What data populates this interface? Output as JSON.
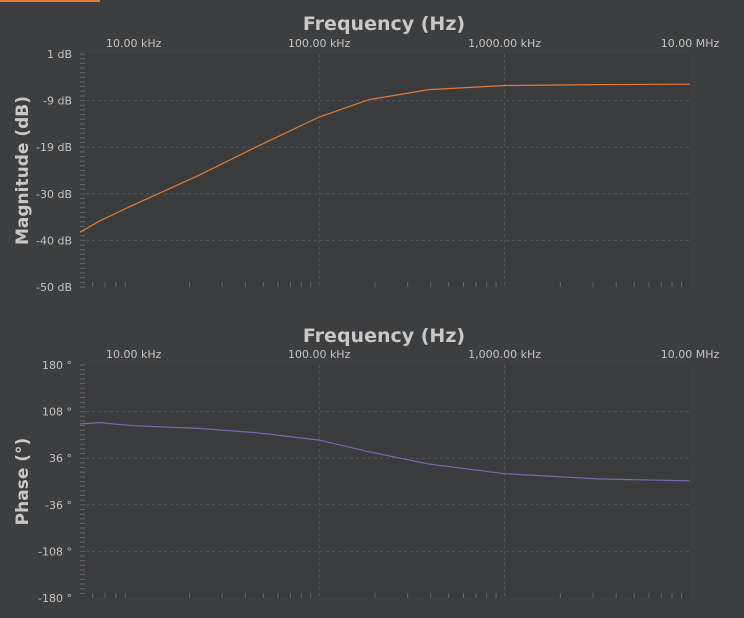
{
  "chart_data": [
    {
      "type": "line",
      "title": "Frequency (Hz)",
      "xlabel": "Frequency (Hz)",
      "ylabel": "Magnitude (dB)",
      "xscale": "log",
      "xlim": [
        5130,
        10000000
      ],
      "ylim": [
        -50,
        1
      ],
      "xticks": [
        {
          "value": 10000,
          "label": "10.00 kHz"
        },
        {
          "value": 100000,
          "label": "100.00 kHz"
        },
        {
          "value": 1000000,
          "label": "1,000.00 kHz"
        },
        {
          "value": 10000000,
          "label": "10.00 MHz"
        }
      ],
      "yticks": [
        {
          "value": 1,
          "label": "1 dB"
        },
        {
          "value": -9.2,
          "label": "-9 dB"
        },
        {
          "value": -19.4,
          "label": "-19 dB"
        },
        {
          "value": -29.6,
          "label": "-30 dB"
        },
        {
          "value": -39.8,
          "label": "-40 dB"
        },
        {
          "value": -50,
          "label": "-50 dB"
        }
      ],
      "grid": true,
      "color": "#e07b39",
      "x": [
        5130,
        6570,
        10000,
        22600,
        47600,
        100000,
        185000,
        390000,
        1000000,
        3200000,
        10000000
      ],
      "y": [
        -38,
        -35.5,
        -32,
        -25.5,
        -19,
        -12.8,
        -9,
        -6.8,
        -5.9,
        -5.7,
        -5.6
      ]
    },
    {
      "type": "line",
      "title": "Frequency (Hz)",
      "xlabel": "Frequency (Hz)",
      "ylabel": "Phase (°)",
      "xscale": "log",
      "xlim": [
        5130,
        10000000
      ],
      "ylim": [
        -180,
        180
      ],
      "xticks": [
        {
          "value": 10000,
          "label": "10.00 kHz"
        },
        {
          "value": 100000,
          "label": "100.00 kHz"
        },
        {
          "value": 1000000,
          "label": "1,000.00 kHz"
        },
        {
          "value": 10000000,
          "label": "10.00 MHz"
        }
      ],
      "yticks": [
        {
          "value": 180,
          "label": "180 °"
        },
        {
          "value": 108,
          "label": "108 °"
        },
        {
          "value": 36,
          "label": "36 °"
        },
        {
          "value": -36,
          "label": "-36 °"
        },
        {
          "value": -108,
          "label": "-108 °"
        },
        {
          "value": -180,
          "label": "-180 °"
        }
      ],
      "grid": true,
      "color": "#7b68b0",
      "x": [
        5130,
        6570,
        10000,
        22600,
        47600,
        100000,
        185000,
        390000,
        1000000,
        3200000,
        10000000
      ],
      "y": [
        89,
        91,
        86,
        82,
        75,
        64,
        46,
        27,
        12,
        4,
        1
      ]
    }
  ]
}
